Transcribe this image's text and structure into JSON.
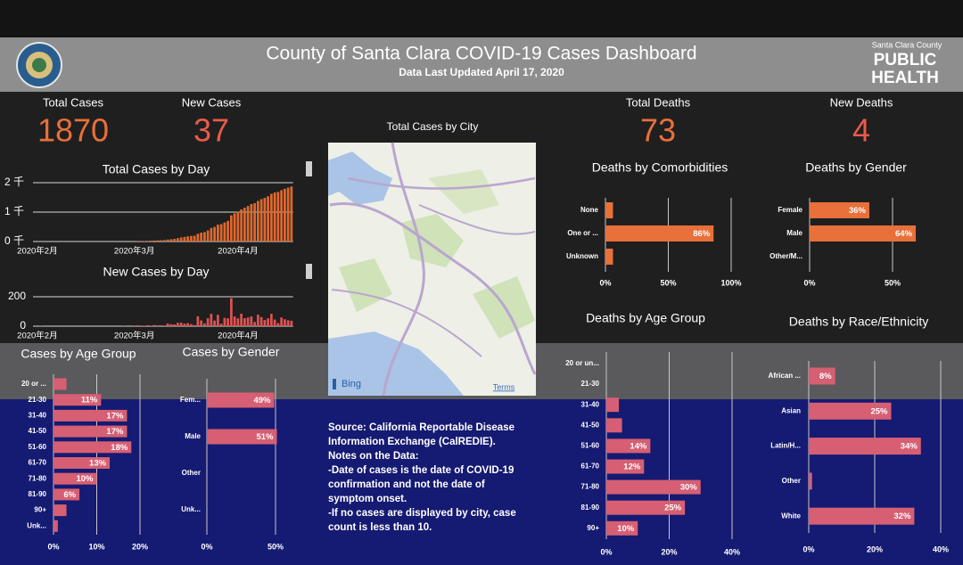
{
  "header": {
    "title": "County of Santa Clara COVID-19 Cases Dashboard",
    "subtitle": "Data Last Updated April 17, 2020",
    "brand_top": "Santa Clara County",
    "brand_line1": "PUBLIC",
    "brand_line2": "HEALTH"
  },
  "kpis": [
    {
      "label": "Total Cases",
      "value": 1870,
      "color": "#e8703a"
    },
    {
      "label": "New Cases",
      "value": 37,
      "color": "#ea5a4a"
    },
    {
      "label": "Total Deaths",
      "value": 73,
      "color": "#e8703a"
    },
    {
      "label": "New Deaths",
      "value": 4,
      "color": "#ea5a4a"
    }
  ],
  "map": {
    "title": "Total Cases by City",
    "attribution": "Bing",
    "link": "Terms"
  },
  "notes": [
    "Source: California Reportable Disease",
    "Information Exchange (CalREDIE).",
    "Notes on the Data:",
    "-Date of cases is the date of COVID-19",
    "confirmation and not the date of",
    "symptom onset.",
    "-If no cases are displayed by city, case",
    "count is less than 10."
  ],
  "chart_data": [
    {
      "type": "column",
      "title": "Total Cases by Day",
      "color": "#e0692e",
      "grid": true,
      "categories": [
        "2020年2月",
        null,
        null,
        null,
        null,
        null,
        null,
        null,
        null,
        null,
        null,
        null,
        null,
        null,
        null,
        null,
        null,
        null,
        null,
        null,
        null,
        null,
        null,
        null,
        null,
        null,
        null,
        null,
        null,
        "2020年3月",
        null,
        null,
        null,
        null,
        null,
        null,
        null,
        null,
        null,
        null,
        null,
        null,
        null,
        null,
        null,
        null,
        null,
        null,
        null,
        null,
        null,
        null,
        null,
        null,
        null,
        null,
        null,
        null,
        null,
        null,
        "2020年4月",
        null,
        null,
        null,
        null,
        null,
        null,
        null,
        null,
        null,
        null,
        null,
        null,
        null,
        null,
        null,
        null
      ],
      "values": [
        0,
        1,
        1,
        1,
        1,
        1,
        1,
        1,
        1,
        1,
        1,
        1,
        1,
        1,
        1,
        1,
        1,
        1,
        1,
        1,
        1,
        1,
        1,
        1,
        1,
        1,
        2,
        2,
        2,
        3,
        9,
        11,
        14,
        20,
        24,
        32,
        37,
        43,
        48,
        66,
        79,
        91,
        114,
        138,
        155,
        175,
        189,
        196,
        263,
        302,
        321,
        375,
        459,
        497,
        574,
        591,
        647,
        700,
        890,
        956,
        1009,
        1094,
        1148,
        1207,
        1273,
        1302,
        1380,
        1442,
        1484,
        1537,
        1621,
        1666,
        1687,
        1746,
        1793,
        1833,
        1870
      ],
      "ylim": [
        0,
        2000
      ],
      "yticks": [
        {
          "value": 0,
          "label": "0 千"
        },
        {
          "value": 1000,
          "label": "1 千"
        },
        {
          "value": 2000,
          "label": "2 千"
        }
      ]
    },
    {
      "type": "column",
      "title": "New Cases by Day",
      "color": "#e05252",
      "grid": true,
      "categories": [
        "2020年2月",
        null,
        null,
        null,
        null,
        null,
        null,
        null,
        null,
        null,
        null,
        null,
        null,
        null,
        null,
        null,
        null,
        null,
        null,
        null,
        null,
        null,
        null,
        null,
        null,
        null,
        null,
        null,
        null,
        "2020年3月",
        null,
        null,
        null,
        null,
        null,
        null,
        null,
        null,
        null,
        null,
        null,
        null,
        null,
        null,
        null,
        null,
        null,
        null,
        null,
        null,
        null,
        null,
        null,
        null,
        null,
        null,
        null,
        null,
        null,
        null,
        "2020年4月",
        null,
        null,
        null,
        null,
        null,
        null,
        null,
        null,
        null,
        null,
        null,
        null,
        null,
        null,
        null,
        null
      ],
      "values": [
        0,
        1,
        0,
        0,
        0,
        0,
        0,
        0,
        0,
        0,
        0,
        0,
        0,
        0,
        0,
        0,
        0,
        0,
        0,
        0,
        0,
        0,
        0,
        0,
        0,
        0,
        1,
        0,
        0,
        1,
        6,
        2,
        3,
        6,
        4,
        8,
        5,
        6,
        5,
        18,
        13,
        12,
        23,
        24,
        17,
        20,
        14,
        7,
        67,
        39,
        19,
        54,
        84,
        38,
        77,
        17,
        56,
        53,
        190,
        66,
        53,
        85,
        54,
        59,
        66,
        29,
        78,
        62,
        42,
        53,
        84,
        45,
        21,
        59,
        47,
        40,
        37
      ],
      "ylim": [
        0,
        200
      ],
      "yticks": [
        0,
        200
      ]
    },
    {
      "type": "bar",
      "title": "Cases by Age Group",
      "color": "#d65f73",
      "grid": true,
      "categories": [
        "20 or ...",
        "21-30",
        "31-40",
        "41-50",
        "51-60",
        "61-70",
        "71-80",
        "81-90",
        "90+",
        "Unk..."
      ],
      "values": [
        3,
        11,
        17,
        17,
        18,
        13,
        10,
        6,
        3,
        1
      ],
      "value_labels": [
        null,
        "11%",
        "17%",
        "17%",
        "18%",
        "13%",
        "10%",
        "6%",
        null,
        null
      ],
      "xlim": [
        0,
        24
      ],
      "xticks": [
        {
          "value": 0,
          "label": "0%"
        },
        {
          "value": 10,
          "label": "10%"
        },
        {
          "value": 20,
          "label": "20%"
        }
      ]
    },
    {
      "type": "bar",
      "title": "Cases by Gender",
      "color": "#d65f73",
      "grid": true,
      "categories": [
        "Fem...",
        "Male",
        "Other",
        "Unk..."
      ],
      "values": [
        49,
        51,
        0,
        0
      ],
      "value_labels": [
        "49%",
        "51%",
        null,
        null
      ],
      "xlim": [
        0,
        60
      ],
      "xticks": [
        {
          "value": 0,
          "label": "0%"
        },
        {
          "value": 50,
          "label": "50%"
        }
      ]
    },
    {
      "type": "bar",
      "title": "Deaths by Comorbidities",
      "color": "#e8703a",
      "grid": true,
      "categories": [
        "None",
        "One or ...",
        "Unknown"
      ],
      "values": [
        6,
        86,
        6
      ],
      "value_labels": [
        null,
        "86%",
        null
      ],
      "xlim": [
        0,
        100
      ],
      "xticks": [
        {
          "value": 0,
          "label": "0%"
        },
        {
          "value": 50,
          "label": "50%"
        },
        {
          "value": 100,
          "label": "100%"
        }
      ]
    },
    {
      "type": "bar",
      "title": "Deaths by Gender",
      "color": "#e8703a",
      "grid": true,
      "categories": [
        "Female",
        "Male",
        "Other/M..."
      ],
      "values": [
        36,
        64,
        0
      ],
      "value_labels": [
        "36%",
        "64%",
        null
      ],
      "xlim": [
        0,
        90
      ],
      "xticks": [
        {
          "value": 0,
          "label": "0%"
        },
        {
          "value": 50,
          "label": "50%"
        }
      ]
    },
    {
      "type": "bar",
      "title": "Deaths by Age Group",
      "color": "#d65f73",
      "grid": true,
      "categories": [
        "20 or un...",
        "21-30",
        "31-40",
        "41-50",
        "51-60",
        "61-70",
        "71-80",
        "81-90",
        "90+"
      ],
      "values": [
        0,
        0,
        4,
        5,
        14,
        12,
        30,
        25,
        10
      ],
      "value_labels": [
        null,
        null,
        null,
        null,
        "14%",
        "12%",
        "30%",
        "25%",
        "10%"
      ],
      "xlim": [
        0,
        40
      ],
      "xticks": [
        {
          "value": 0,
          "label": "0%"
        },
        {
          "value": 20,
          "label": "20%"
        },
        {
          "value": 40,
          "label": "40%"
        }
      ]
    },
    {
      "type": "bar",
      "title": "Deaths by Race/Ethnicity",
      "color": "#d65f73",
      "grid": true,
      "categories": [
        "African ...",
        "Asian",
        "Latin/H...",
        "Other",
        "White"
      ],
      "values": [
        8,
        25,
        34,
        1,
        32
      ],
      "value_labels": [
        "8%",
        "25%",
        "34%",
        null,
        "32%"
      ],
      "xlim": [
        0,
        45
      ],
      "xticks": [
        {
          "value": 0,
          "label": "0%"
        },
        {
          "value": 20,
          "label": "20%"
        },
        {
          "value": 40,
          "label": "40%"
        }
      ]
    }
  ]
}
